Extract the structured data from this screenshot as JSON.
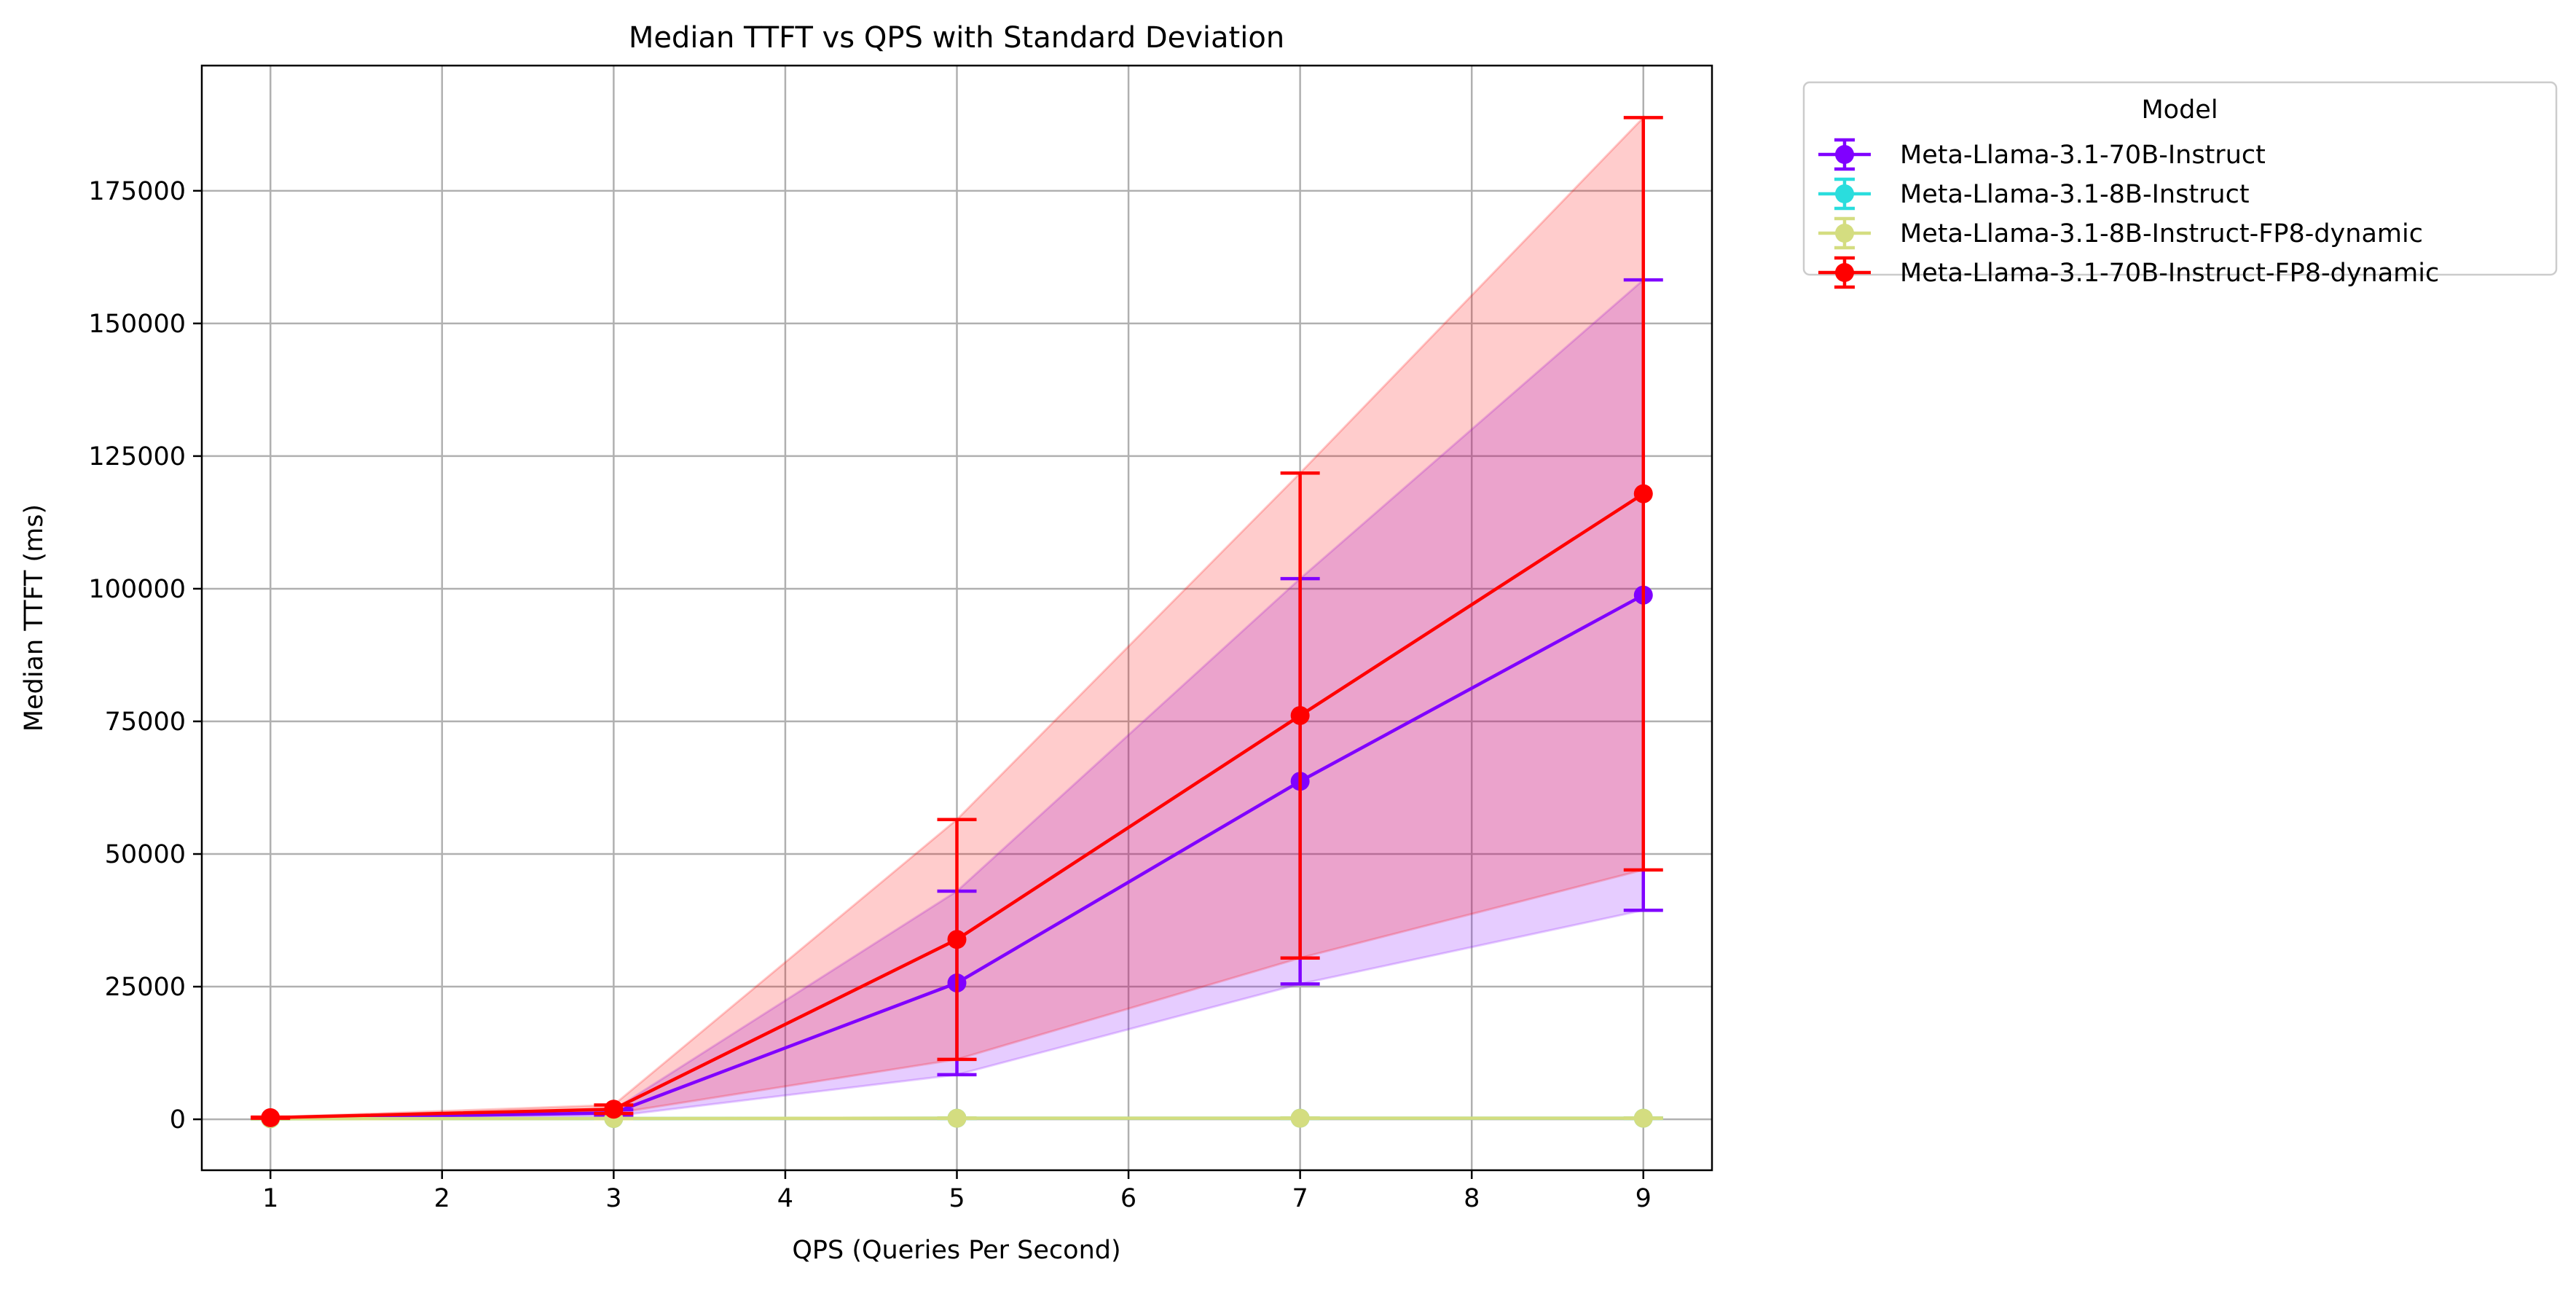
{
  "chart_data": {
    "type": "line",
    "title": "Median TTFT vs QPS with Standard Deviation",
    "xlabel": "QPS (Queries Per Second)",
    "ylabel": "Median TTFT (ms)",
    "xlim": [
      0.6,
      9.4
    ],
    "ylim": [
      -9600,
      198600
    ],
    "xticks": [
      1,
      2,
      3,
      4,
      5,
      6,
      7,
      8,
      9
    ],
    "yticks": [
      0,
      25000,
      50000,
      75000,
      100000,
      125000,
      150000,
      175000
    ],
    "grid": true,
    "legend": {
      "title": "Model",
      "placement": "outside-top-right"
    },
    "x": [
      1,
      3,
      5,
      7,
      9
    ],
    "series": [
      {
        "name": "Meta-Llama-3.1-70B-Instruct",
        "color": "#8000ff",
        "values": [
          200,
          1200,
          25700,
          63700,
          98800
        ],
        "std": [
          100,
          600,
          17300,
          38200,
          59400
        ]
      },
      {
        "name": "Meta-Llama-3.1-8B-Instruct",
        "color": "#2adddd",
        "values": [
          100,
          150,
          200,
          200,
          200
        ],
        "std": [
          20,
          30,
          40,
          40,
          40
        ]
      },
      {
        "name": "Meta-Llama-3.1-8B-Instruct-FP8-dynamic",
        "color": "#d4dd80",
        "values": [
          100,
          150,
          200,
          200,
          200
        ],
        "std": [
          20,
          30,
          40,
          40,
          40
        ]
      },
      {
        "name": "Meta-Llama-3.1-70B-Instruct-FP8-dynamic",
        "color": "#ff0000",
        "values": [
          300,
          1900,
          33900,
          76100,
          117900
        ],
        "std": [
          100,
          800,
          22600,
          45700,
          70900
        ]
      }
    ]
  }
}
